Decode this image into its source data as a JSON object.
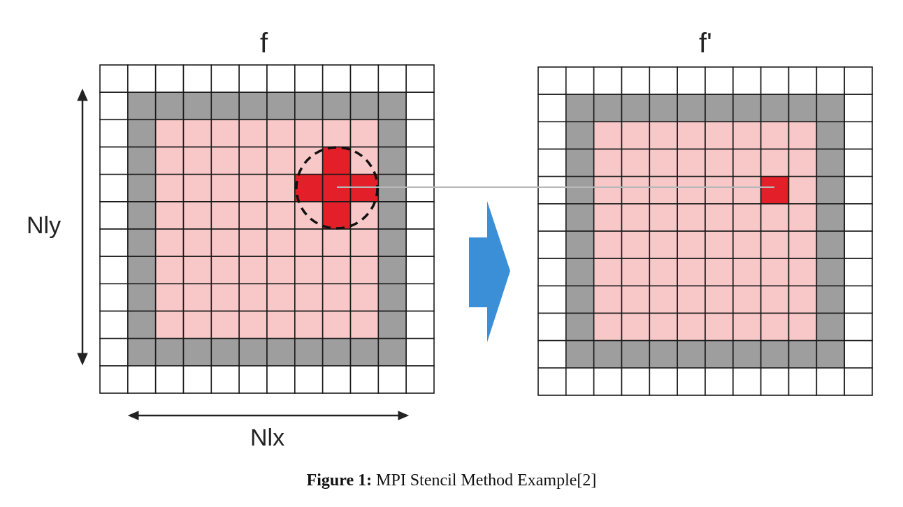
{
  "left_grid": {
    "title": "f"
  },
  "right_grid": {
    "title": "f'"
  },
  "axes": {
    "y_label": "Nly",
    "x_label": "Nlx"
  },
  "caption": {
    "label": "Figure 1:",
    "text": "MPI Stencil Method Example[2]"
  },
  "colors": {
    "halo_outer": "#ffffff",
    "ghost": "#9e9e9e",
    "interior": "#f8c8c8",
    "stencil": "#e3202a",
    "grid_line": "#1a1a1a",
    "arrow": "#3b8fd6",
    "connector": "#b8b8b8"
  },
  "stencil": {
    "shape": "cross",
    "radius_cells": 1,
    "highlight_marker": "dashed-circle"
  }
}
